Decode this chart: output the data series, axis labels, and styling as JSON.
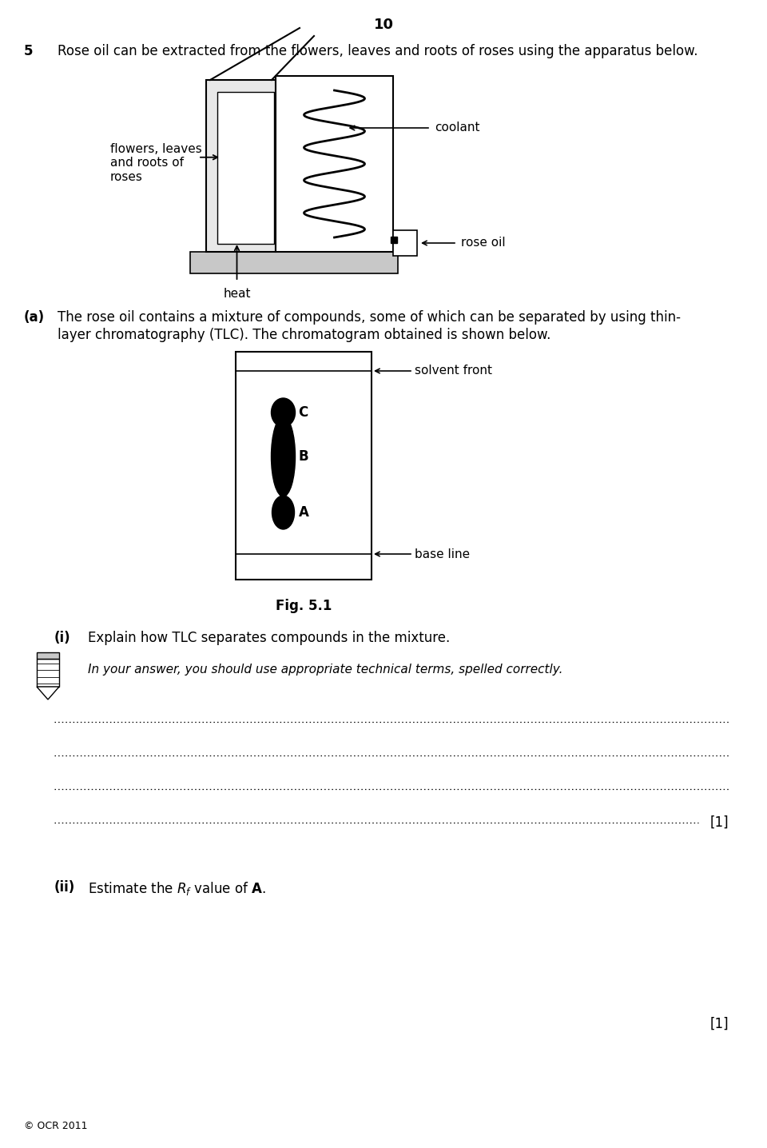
{
  "page_number": "10",
  "question_number": "5",
  "question_text": "Rose oil can be extracted from the flowers, leaves and roots of roses using the apparatus below.",
  "fig_label": "Fig. 5.1",
  "solvent_front_label": "solvent front",
  "base_line_label": "base line",
  "coolant_label": "coolant",
  "rose_oil_label": "rose oil",
  "flowers_label": "flowers, leaves\nand roots of\nroses",
  "heat_label": "heat",
  "pencil_note": "In your answer, you should use appropriate technical terms, spelled correctly.",
  "mark1": "[1]",
  "mark2": "[1]",
  "copyright": "© OCR 2011",
  "bg_color": "#ffffff",
  "text_color": "#000000",
  "spot_color": "#000000",
  "gray_color": "#c8c8c8",
  "light_gray": "#e8e8e8"
}
